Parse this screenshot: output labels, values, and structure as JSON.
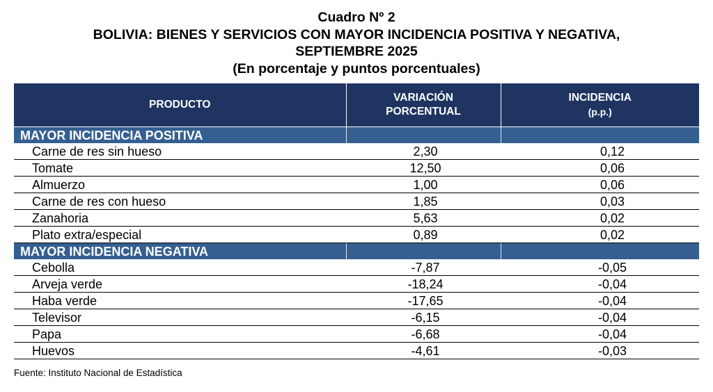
{
  "title": {
    "line1": "Cuadro Nº 2",
    "line2": "BOLIVIA: BIENES Y SERVICIOS CON MAYOR INCIDENCIA POSITIVA Y NEGATIVA,",
    "line3": "SEPTIEMBRE 2025",
    "line4": "(En porcentaje y puntos porcentuales)"
  },
  "headers": {
    "producto": "PRODUCTO",
    "variacion_1": "VARIACIÓN",
    "variacion_2": "PORCENTUAL",
    "incidencia_1": "INCIDENCIA",
    "incidencia_2": "(p.p.)"
  },
  "positive": {
    "label": "MAYOR INCIDENCIA POSITIVA",
    "rows": [
      {
        "producto": "Carne de res sin hueso",
        "variacion": "2,30",
        "incidencia": "0,12"
      },
      {
        "producto": "Tomate",
        "variacion": "12,50",
        "incidencia": "0,06"
      },
      {
        "producto": "Almuerzo",
        "variacion": "1,00",
        "incidencia": "0,06"
      },
      {
        "producto": "Carne de res con hueso",
        "variacion": "1,85",
        "incidencia": "0,03"
      },
      {
        "producto": "Zanahoria",
        "variacion": "5,63",
        "incidencia": "0,02"
      },
      {
        "producto": "Plato extra/especial",
        "variacion": "0,89",
        "incidencia": "0,02"
      }
    ]
  },
  "negative": {
    "label": "MAYOR INCIDENCIA NEGATIVA",
    "rows": [
      {
        "producto": "Cebolla",
        "variacion": "-7,87",
        "incidencia": "-0,05"
      },
      {
        "producto": "Arveja verde",
        "variacion": "-18,24",
        "incidencia": "-0,04"
      },
      {
        "producto": "Haba verde",
        "variacion": "-17,65",
        "incidencia": "-0,04"
      },
      {
        "producto": "Televisor",
        "variacion": "-6,15",
        "incidencia": "-0,04"
      },
      {
        "producto": "Papa",
        "variacion": "-6,68",
        "incidencia": "-0,04"
      },
      {
        "producto": "Huevos",
        "variacion": "-4,61",
        "incidencia": "-0,03"
      }
    ]
  },
  "footer": "Fuente: Instituto Nacional de Estadística",
  "colors": {
    "header_bg": "#1f3461",
    "section_bg": "#355f91"
  }
}
